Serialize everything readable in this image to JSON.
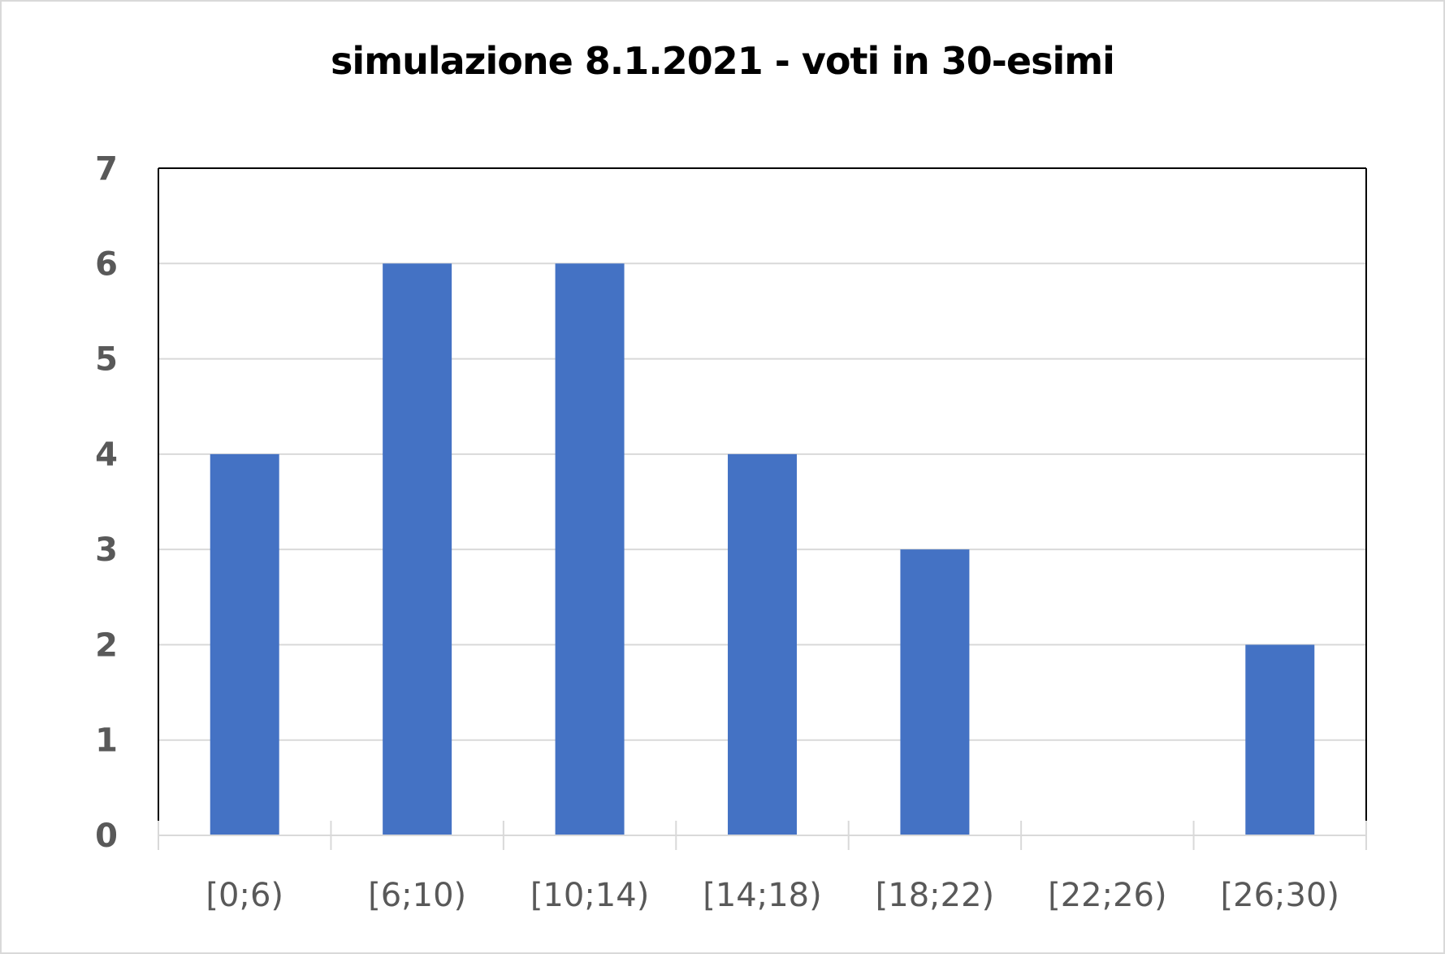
{
  "chart_data": {
    "type": "bar",
    "title": "simulazione 8.1.2021 - voti in 30-esimi",
    "xlabel": "",
    "ylabel": "",
    "categories": [
      "[0;6)",
      "[6;10)",
      "[10;14)",
      "[14;18)",
      "[18;22)",
      "[22;26)",
      "[26;30)"
    ],
    "values": [
      4,
      6,
      6,
      4,
      3,
      0,
      2
    ],
    "ylim": [
      0,
      7
    ],
    "yticks": [
      "0",
      "1",
      "2",
      "3",
      "4",
      "5",
      "6",
      "7"
    ],
    "grid": true,
    "legend": "none",
    "bar_color": "#4472c4",
    "gridline_color": "#d9d9d9",
    "tick_label_color": "#595959"
  }
}
